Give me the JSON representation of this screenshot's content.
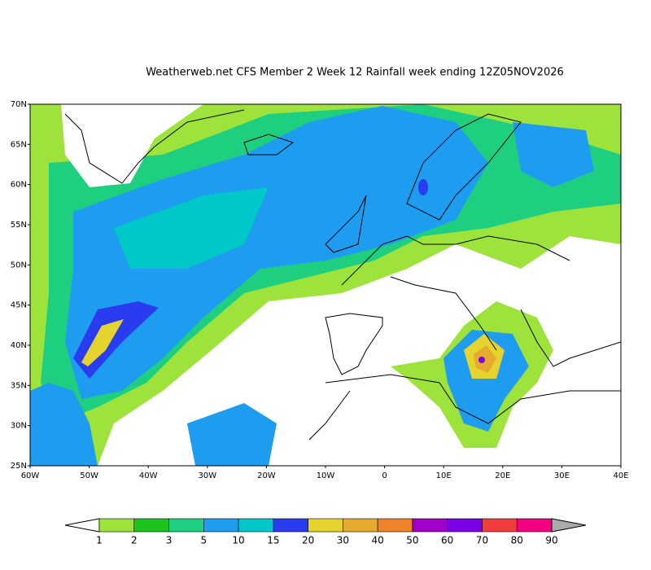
{
  "title": "Weatherweb.net CFS Member 2 Week 12 Rainfall week ending 12Z05NOV2026",
  "map": {
    "lat_labels": [
      "70N",
      "65N",
      "60N",
      "55N",
      "50N",
      "45N",
      "40N",
      "35N",
      "30N",
      "25N"
    ],
    "lon_labels": [
      "60W",
      "50W",
      "40W",
      "30W",
      "20W",
      "10W",
      "0",
      "10E",
      "20E",
      "30E",
      "40E"
    ]
  },
  "colorbar": {
    "levels": [
      1,
      2,
      3,
      5,
      10,
      15,
      20,
      30,
      40,
      50,
      60,
      70,
      80,
      90
    ],
    "colors": [
      "#9ee33c",
      "#1ec41e",
      "#1ecf80",
      "#1e9cf0",
      "#00c8c8",
      "#2a3cf0",
      "#e6d42e",
      "#e6aa2e",
      "#f0822a",
      "#a000c8",
      "#7a00e6",
      "#f03c3c",
      "#f00080"
    ],
    "under_color": "#ffffff",
    "over_color": "#aaaaaa"
  }
}
